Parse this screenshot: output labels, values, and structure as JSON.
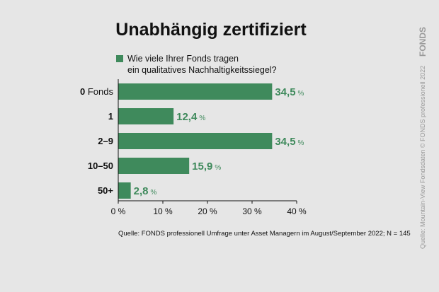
{
  "chart_data": {
    "type": "bar",
    "orientation": "horizontal",
    "title": "Unabhängig zertifiziert",
    "legend": {
      "placement": "top",
      "line1": "Wie viele Ihrer Fonds tragen",
      "line2": "ein qualitatives Nachhaltigkeitssiegel?"
    },
    "categories": [
      {
        "prefix": "0",
        "suffix": " Fonds"
      },
      {
        "prefix": "1",
        "suffix": ""
      },
      {
        "prefix": "2–9",
        "suffix": ""
      },
      {
        "prefix": "10–50",
        "suffix": ""
      },
      {
        "prefix": "50+",
        "suffix": ""
      }
    ],
    "series": [
      {
        "color": "#3f8a5c",
        "values": [
          34.5,
          12.4,
          34.5,
          15.9,
          2.8
        ]
      }
    ],
    "value_labels": [
      "34,5",
      "12,4",
      "34,5",
      "15,9",
      "2,8"
    ],
    "value_unit": "%",
    "xlim": [
      0,
      40
    ],
    "ticks": [
      0,
      10,
      20,
      30,
      40
    ],
    "tick_labels": [
      "0 %",
      "10 %",
      "20 %",
      "30 %",
      "40 %"
    ],
    "grid": false,
    "source": "Quelle: FONDS professionell Umfrage unter Asset Managern im August/September 2022; N = 145",
    "side_note": "Quelle: Mountain-View Fondsdaten   © FONDS professionell 2022",
    "logo": "FONDS",
    "colors": {
      "bar": "#3f8a5c",
      "background": "#e6e6e6",
      "axis": "#111111",
      "side": "#9a9a9a"
    }
  }
}
